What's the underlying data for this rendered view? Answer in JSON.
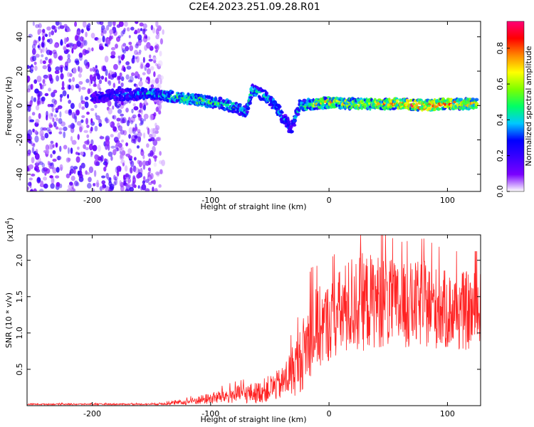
{
  "figure": {
    "title": "C2E4.2023.251.09.28.R01"
  },
  "chart_data": [
    {
      "type": "heatmap",
      "title": "",
      "xlabel": "Height of straight line (km)",
      "ylabel": "Frequency (Hz)",
      "xlim": [
        -255,
        128
      ],
      "ylim": [
        -50,
        49
      ],
      "xticks": [
        -200,
        -100,
        0,
        100
      ],
      "yticks": [
        -40,
        -20,
        0,
        20,
        40
      ],
      "colorbar": {
        "label": "Normalized spectral amplitude",
        "range": [
          0.0,
          0.95
        ],
        "ticks": [
          0.0,
          0.2,
          0.4,
          0.6,
          0.8
        ],
        "tick_labels": [
          "0.0",
          "0.2",
          "0.4",
          "0.6",
          "0.8"
        ],
        "colormap": [
          "#ffffff",
          "#7a00ff",
          "#3b00ff",
          "#0000ff",
          "#00c8ff",
          "#00ff66",
          "#7cff00",
          "#ffff00",
          "#ff8800",
          "#ff0000",
          "#ff0077"
        ]
      },
      "ridge": [
        {
          "x": -200,
          "y": 4,
          "amp": 0.25
        },
        {
          "x": -185,
          "y": 6,
          "amp": 0.3
        },
        {
          "x": -150,
          "y": 7,
          "amp": 0.45
        },
        {
          "x": -130,
          "y": 5,
          "amp": 0.55
        },
        {
          "x": -110,
          "y": 3,
          "amp": 0.6
        },
        {
          "x": -90,
          "y": 1,
          "amp": 0.5
        },
        {
          "x": -80,
          "y": -1,
          "amp": 0.55
        },
        {
          "x": -70,
          "y": -4,
          "amp": 0.45
        },
        {
          "x": -65,
          "y": 9,
          "amp": 0.5
        },
        {
          "x": -55,
          "y": 6,
          "amp": 0.45
        },
        {
          "x": -45,
          "y": 0,
          "amp": 0.45
        },
        {
          "x": -38,
          "y": -8,
          "amp": 0.4
        },
        {
          "x": -32,
          "y": -14,
          "amp": 0.35
        },
        {
          "x": -25,
          "y": 0,
          "amp": 0.5
        },
        {
          "x": -10,
          "y": 1,
          "amp": 0.7
        },
        {
          "x": 0,
          "y": 2,
          "amp": 0.75
        },
        {
          "x": 20,
          "y": 1,
          "amp": 0.7
        },
        {
          "x": 40,
          "y": 1,
          "amp": 0.75
        },
        {
          "x": 60,
          "y": 1,
          "amp": 0.85
        },
        {
          "x": 80,
          "y": 0,
          "amp": 0.95
        },
        {
          "x": 100,
          "y": 1,
          "amp": 0.85
        },
        {
          "x": 125,
          "y": 1,
          "amp": 0.8
        }
      ],
      "noise_region": {
        "x_range": [
          -255,
          -140
        ],
        "y_range": [
          -50,
          49
        ],
        "amp": 0.18
      }
    },
    {
      "type": "line",
      "title": "",
      "xlabel": "Height of straight line (km)",
      "ylabel": "SNR (10 * v/v)",
      "yscale_label": "(x10",
      "yscale_exponent": "4",
      "yscale_suffix": ")",
      "xlim": [
        -255,
        128
      ],
      "ylim": [
        0,
        2.35
      ],
      "xticks": [
        -200,
        -100,
        0,
        100
      ],
      "yticks": [
        0.5,
        1.0,
        1.5,
        2.0
      ],
      "ytick_labels": [
        "0.5",
        "1.0",
        "1.5",
        "2.0"
      ],
      "series": [
        {
          "color": "#ff2222",
          "envelope": [
            {
              "x": -255,
              "mean": 0.02,
              "amp": 0.01
            },
            {
              "x": -150,
              "mean": 0.02,
              "amp": 0.01
            },
            {
              "x": -125,
              "mean": 0.04,
              "amp": 0.03
            },
            {
              "x": -100,
              "mean": 0.1,
              "amp": 0.08
            },
            {
              "x": -80,
              "mean": 0.15,
              "amp": 0.12
            },
            {
              "x": -60,
              "mean": 0.18,
              "amp": 0.15
            },
            {
              "x": -40,
              "mean": 0.3,
              "amp": 0.22
            },
            {
              "x": -25,
              "mean": 0.6,
              "amp": 0.45
            },
            {
              "x": -15,
              "mean": 1.0,
              "amp": 0.6
            },
            {
              "x": 0,
              "mean": 1.15,
              "amp": 0.55
            },
            {
              "x": 20,
              "mean": 1.4,
              "amp": 0.7
            },
            {
              "x": 40,
              "mean": 1.45,
              "amp": 0.65
            },
            {
              "x": 60,
              "mean": 1.35,
              "amp": 0.6
            },
            {
              "x": 80,
              "mean": 1.4,
              "amp": 0.6
            },
            {
              "x": 100,
              "mean": 1.3,
              "amp": 0.55
            },
            {
              "x": 128,
              "mean": 1.3,
              "amp": 0.55
            }
          ]
        }
      ]
    }
  ]
}
